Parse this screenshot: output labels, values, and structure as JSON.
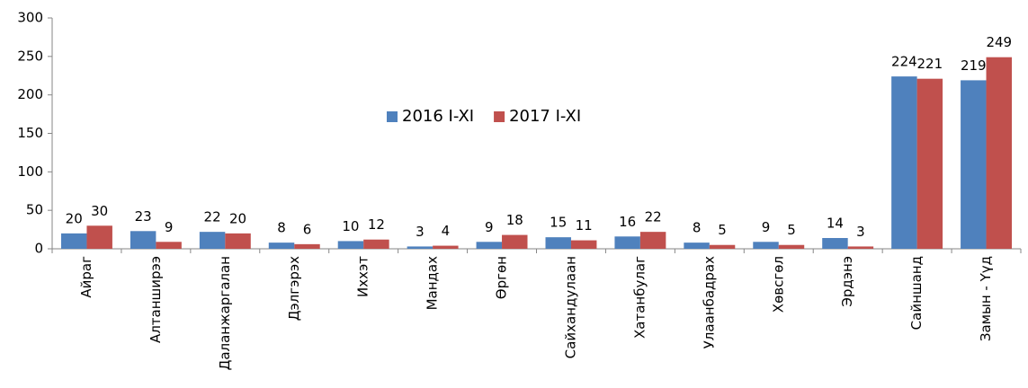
{
  "chart_data": {
    "type": "bar",
    "categories": [
      "Айраг",
      "Алтанширээ",
      "Даланжаргалан",
      "Дэлгэрэх",
      "Иххэт",
      "Мандах",
      "Өргөн",
      "Сайхандулаан",
      "Хатанбулаг",
      "Улаанбадрах",
      "Хөвсгөл",
      "Эрдэнэ",
      "Сайншанд",
      "Замын - Үүд"
    ],
    "series": [
      {
        "name": "2016 I-XI",
        "color": "#4f81bd",
        "values": [
          20,
          23,
          22,
          8,
          10,
          3,
          9,
          15,
          16,
          8,
          9,
          14,
          224,
          219
        ]
      },
      {
        "name": "2017 I-XI",
        "color": "#c0504d",
        "values": [
          30,
          9,
          20,
          6,
          12,
          4,
          18,
          11,
          22,
          5,
          5,
          3,
          221,
          249
        ]
      }
    ],
    "ylim": [
      0,
      300
    ],
    "yticks": [
      0,
      50,
      100,
      150,
      200,
      250,
      300
    ],
    "grid": false,
    "legend": "center"
  }
}
